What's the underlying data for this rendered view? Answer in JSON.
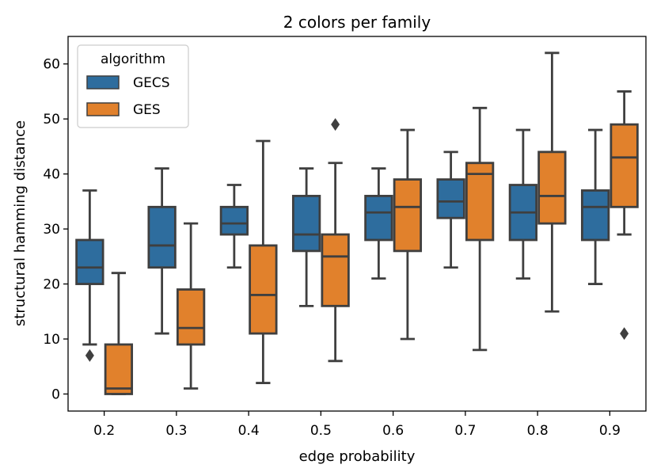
{
  "chart_data": {
    "type": "box",
    "title": "2 colors per family",
    "xlabel": "edge probability",
    "ylabel": "structural hamming distance",
    "ylim": [
      -3.1,
      65
    ],
    "yticks": [
      0,
      10,
      20,
      30,
      40,
      50,
      60
    ],
    "categories": [
      "0.2",
      "0.3",
      "0.4",
      "0.5",
      "0.6",
      "0.7",
      "0.8",
      "0.9"
    ],
    "legend": {
      "title": "algorithm",
      "position": "top-left"
    },
    "series": [
      {
        "name": "GECS",
        "color": "#2e6d9e",
        "boxes": [
          {
            "whislo": 9,
            "q1": 20,
            "med": 23,
            "q3": 28,
            "whishi": 37,
            "fliers": [
              7
            ]
          },
          {
            "whislo": 11,
            "q1": 23,
            "med": 27,
            "q3": 34,
            "whishi": 41,
            "fliers": []
          },
          {
            "whislo": 23,
            "q1": 29,
            "med": 31,
            "q3": 34,
            "whishi": 38,
            "fliers": []
          },
          {
            "whislo": 16,
            "q1": 26,
            "med": 29,
            "q3": 36,
            "whishi": 41,
            "fliers": []
          },
          {
            "whislo": 21,
            "q1": 28,
            "med": 33,
            "q3": 36,
            "whishi": 41,
            "fliers": []
          },
          {
            "whislo": 23,
            "q1": 32,
            "med": 35,
            "q3": 39,
            "whishi": 44,
            "fliers": []
          },
          {
            "whislo": 21,
            "q1": 28,
            "med": 33,
            "q3": 38,
            "whishi": 48,
            "fliers": []
          },
          {
            "whislo": 20,
            "q1": 28,
            "med": 34,
            "q3": 37,
            "whishi": 48,
            "fliers": []
          }
        ]
      },
      {
        "name": "GES",
        "color": "#e1812c",
        "boxes": [
          {
            "whislo": 0,
            "q1": 0,
            "med": 1,
            "q3": 9,
            "whishi": 22,
            "fliers": []
          },
          {
            "whislo": 1,
            "q1": 9,
            "med": 12,
            "q3": 19,
            "whishi": 31,
            "fliers": []
          },
          {
            "whislo": 2,
            "q1": 11,
            "med": 18,
            "q3": 27,
            "whishi": 46,
            "fliers": []
          },
          {
            "whislo": 6,
            "q1": 16,
            "med": 25,
            "q3": 29,
            "whishi": 42,
            "fliers": [
              49
            ]
          },
          {
            "whislo": 10,
            "q1": 26,
            "med": 34,
            "q3": 39,
            "whishi": 48,
            "fliers": []
          },
          {
            "whislo": 8,
            "q1": 28,
            "med": 40,
            "q3": 42,
            "whishi": 52,
            "fliers": []
          },
          {
            "whislo": 15,
            "q1": 31,
            "med": 36,
            "q3": 44,
            "whishi": 62,
            "fliers": []
          },
          {
            "whislo": 29,
            "q1": 34,
            "med": 43,
            "q3": 49,
            "whishi": 55,
            "fliers": [
              11
            ]
          }
        ]
      }
    ]
  }
}
